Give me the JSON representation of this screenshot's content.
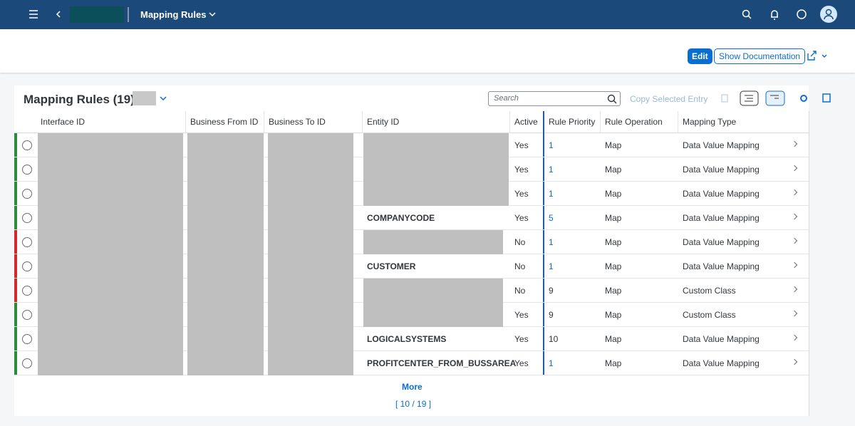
{
  "shell": {
    "title": "Mapping Rules"
  },
  "header": {
    "edit": "Edit",
    "show_documentation": "Show Documentation"
  },
  "table": {
    "title": "Mapping Rules (19)",
    "search_placeholder": "Search",
    "copy_selected": "Copy Selected Entry",
    "columns": [
      "Interface ID",
      "Business From ID",
      "Business To ID",
      "Entity ID",
      "Active",
      "Rule Priority",
      "Rule Operation",
      "Mapping Type"
    ],
    "rows": [
      {
        "highlight": "#2b8a3e",
        "entity_id": null,
        "active": "Yes",
        "priority": "1",
        "priority_color": "#0a6ed1",
        "operation": "Map",
        "mapping_type": "Data Value Mapping"
      },
      {
        "highlight": "#2b8a3e",
        "entity_id": null,
        "active": "Yes",
        "priority": "1",
        "priority_color": "#0a6ed1",
        "operation": "Map",
        "mapping_type": "Data Value Mapping"
      },
      {
        "highlight": "#2b8a3e",
        "entity_id": null,
        "active": "Yes",
        "priority": "1",
        "priority_color": "#0a6ed1",
        "operation": "Map",
        "mapping_type": "Data Value Mapping"
      },
      {
        "highlight": "#2b8a3e",
        "entity_id": "COMPANYCODE",
        "active": "Yes",
        "priority": "5",
        "priority_color": "#0a6ed1",
        "operation": "Map",
        "mapping_type": "Data Value Mapping"
      },
      {
        "highlight": "#d62828",
        "entity_id": null,
        "active": "No",
        "priority": "1",
        "priority_color": "#0a6ed1",
        "operation": "Map",
        "mapping_type": "Data Value Mapping"
      },
      {
        "highlight": "#d62828",
        "entity_id": "CUSTOMER",
        "active": "No",
        "priority": "1",
        "priority_color": "#0a6ed1",
        "operation": "Map",
        "mapping_type": "Data Value Mapping"
      },
      {
        "highlight": "#d62828",
        "entity_id": null,
        "active": "No",
        "priority": "9",
        "priority_color": "#32363a",
        "operation": "Map",
        "mapping_type": "Custom Class"
      },
      {
        "highlight": "#2b8a3e",
        "entity_id": null,
        "active": "Yes",
        "priority": "9",
        "priority_color": "#32363a",
        "operation": "Map",
        "mapping_type": "Custom Class"
      },
      {
        "highlight": "#2b8a3e",
        "entity_id": "LOGICALSYSTEMS",
        "active": "Yes",
        "priority": "10",
        "priority_color": "#32363a",
        "operation": "Map",
        "mapping_type": "Data Value Mapping"
      },
      {
        "highlight": "#2b8a3e",
        "entity_id": "PROFITCENTER_FROM_BUSSAREA",
        "active": "Yes",
        "priority": "1",
        "priority_color": "#0a6ed1",
        "operation": "Map",
        "mapping_type": "Data Value Mapping"
      }
    ],
    "more": "More",
    "paging": "[ 10 / 19 ]"
  }
}
